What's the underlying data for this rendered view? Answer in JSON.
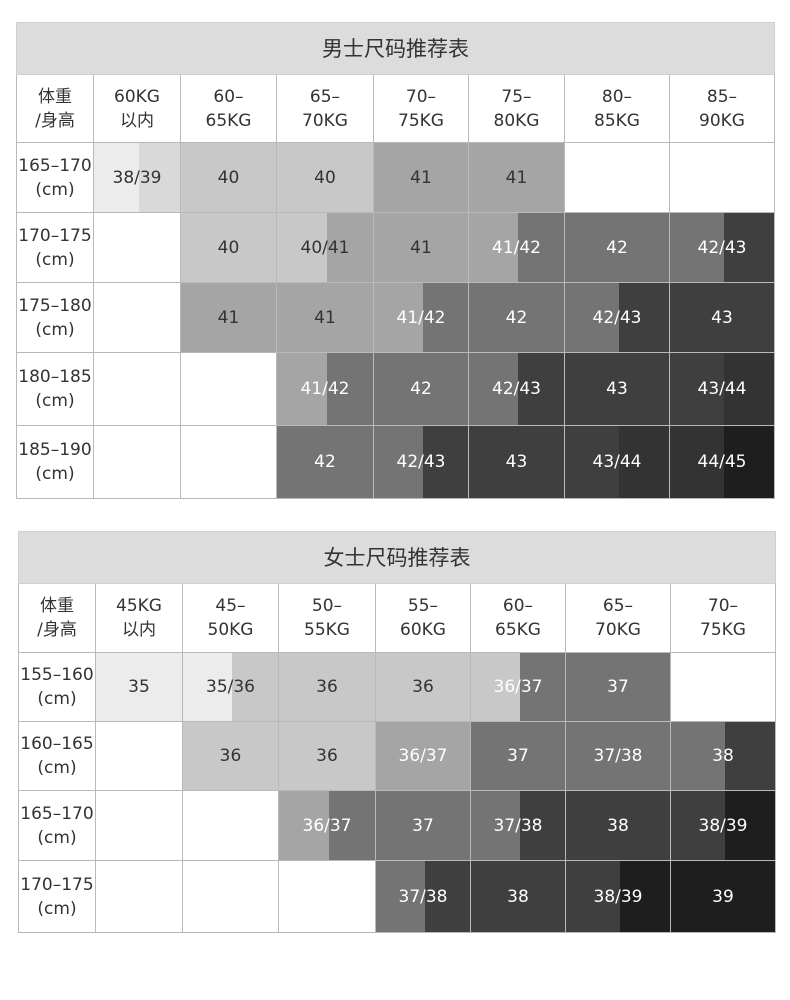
{
  "colors": {
    "c1": "#ececec",
    "c2": "#d9d9d9",
    "c3": "#c8c8c8",
    "c4": "#a5a5a5",
    "c5": "#747474",
    "c6": "#5f5f5f",
    "c7": "#3f3f3f",
    "c8": "#333333",
    "c9": "#1e1e1e",
    "empty": "#ffffff"
  },
  "men": {
    "title": "男士尺码推荐表",
    "corner": "体重\n/身高",
    "columns": [
      "60KG\n以内",
      "60–\n65KG",
      "65–\n70KG",
      "70–\n75KG",
      "75–\n80KG",
      "80–\n85KG",
      "85–\n90KG"
    ],
    "rows": [
      {
        "label": "165–170\n(cm)",
        "cells": [
          {
            "text": "38/39",
            "fill": [
              "c1",
              "c2"
            ]
          },
          {
            "text": "40",
            "fill": [
              "c3"
            ]
          },
          {
            "text": "40",
            "fill": [
              "c3"
            ]
          },
          {
            "text": "41",
            "fill": [
              "c4"
            ]
          },
          {
            "text": "41",
            "fill": [
              "c4"
            ]
          },
          {
            "text": "",
            "fill": [
              "empty"
            ]
          },
          {
            "text": "",
            "fill": [
              "empty"
            ]
          }
        ]
      },
      {
        "label": "170–175\n(cm)",
        "cells": [
          {
            "text": "",
            "fill": [
              "empty"
            ]
          },
          {
            "text": "40",
            "fill": [
              "c3"
            ]
          },
          {
            "text": "40/41",
            "fill": [
              "c3",
              "c4"
            ]
          },
          {
            "text": "41",
            "fill": [
              "c4"
            ]
          },
          {
            "text": "41/42",
            "fill": [
              "c4",
              "c5"
            ]
          },
          {
            "text": "42",
            "fill": [
              "c5"
            ]
          },
          {
            "text": "42/43",
            "fill": [
              "c5",
              "c7"
            ]
          }
        ]
      },
      {
        "label": "175–180\n(cm)",
        "cells": [
          {
            "text": "",
            "fill": [
              "empty"
            ]
          },
          {
            "text": "41",
            "fill": [
              "c4"
            ]
          },
          {
            "text": "41",
            "fill": [
              "c4"
            ]
          },
          {
            "text": "41/42",
            "fill": [
              "c4",
              "c5"
            ]
          },
          {
            "text": "42",
            "fill": [
              "c5"
            ]
          },
          {
            "text": "42/43",
            "fill": [
              "c5",
              "c7"
            ]
          },
          {
            "text": "43",
            "fill": [
              "c7"
            ]
          }
        ]
      },
      {
        "label": "180–185\n(cm)",
        "cells": [
          {
            "text": "",
            "fill": [
              "empty"
            ]
          },
          {
            "text": "",
            "fill": [
              "empty"
            ]
          },
          {
            "text": "41/42",
            "fill": [
              "c4",
              "c5"
            ]
          },
          {
            "text": "42",
            "fill": [
              "c5"
            ]
          },
          {
            "text": "42/43",
            "fill": [
              "c5",
              "c7"
            ]
          },
          {
            "text": "43",
            "fill": [
              "c7"
            ]
          },
          {
            "text": "43/44",
            "fill": [
              "c7",
              "c8"
            ]
          }
        ]
      },
      {
        "label": "185–190\n(cm)",
        "cells": [
          {
            "text": "",
            "fill": [
              "empty"
            ]
          },
          {
            "text": "",
            "fill": [
              "empty"
            ]
          },
          {
            "text": "42",
            "fill": [
              "c5"
            ]
          },
          {
            "text": "42/43",
            "fill": [
              "c5",
              "c7"
            ]
          },
          {
            "text": "43",
            "fill": [
              "c7"
            ]
          },
          {
            "text": "43/44",
            "fill": [
              "c7",
              "c8"
            ]
          },
          {
            "text": "44/45",
            "fill": [
              "c8",
              "c9"
            ]
          }
        ]
      }
    ]
  },
  "women": {
    "title": "女士尺码推荐表",
    "corner": "体重\n/身高",
    "columns": [
      "45KG\n以内",
      "45–\n50KG",
      "50–\n55KG",
      "55–\n60KG",
      "60–\n65KG",
      "65–\n70KG",
      "70–\n75KG"
    ],
    "rows": [
      {
        "label": "155–160\n(cm)",
        "cells": [
          {
            "text": "35",
            "fill": [
              "c1"
            ]
          },
          {
            "text": "35/36",
            "fill": [
              "c1",
              "c3"
            ]
          },
          {
            "text": "36",
            "fill": [
              "c3"
            ]
          },
          {
            "text": "36",
            "fill": [
              "c3"
            ]
          },
          {
            "text": "36/37",
            "fill": [
              "c3",
              "c5"
            ]
          },
          {
            "text": "37",
            "fill": [
              "c5"
            ]
          },
          {
            "text": "",
            "fill": [
              "empty"
            ]
          }
        ]
      },
      {
        "label": "160–165\n(cm)",
        "cells": [
          {
            "text": "",
            "fill": [
              "empty"
            ]
          },
          {
            "text": "36",
            "fill": [
              "c3"
            ]
          },
          {
            "text": "36",
            "fill": [
              "c3"
            ]
          },
          {
            "text": "36/37",
            "fill": [
              "c4",
              "c4"
            ]
          },
          {
            "text": "37",
            "fill": [
              "c5"
            ]
          },
          {
            "text": "37/38",
            "fill": [
              "c5",
              "c5"
            ]
          },
          {
            "text": "38",
            "fill": [
              "c5",
              "c7"
            ]
          }
        ]
      },
      {
        "label": "165–170\n(cm)",
        "cells": [
          {
            "text": "",
            "fill": [
              "empty"
            ]
          },
          {
            "text": "",
            "fill": [
              "empty"
            ]
          },
          {
            "text": "36/37",
            "fill": [
              "c4",
              "c5"
            ]
          },
          {
            "text": "37",
            "fill": [
              "c5"
            ]
          },
          {
            "text": "37/38",
            "fill": [
              "c5",
              "c7"
            ]
          },
          {
            "text": "38",
            "fill": [
              "c7"
            ]
          },
          {
            "text": "38/39",
            "fill": [
              "c7",
              "c9"
            ]
          }
        ]
      },
      {
        "label": "170–175\n(cm)",
        "cells": [
          {
            "text": "",
            "fill": [
              "empty"
            ]
          },
          {
            "text": "",
            "fill": [
              "empty"
            ]
          },
          {
            "text": "",
            "fill": [
              "empty"
            ]
          },
          {
            "text": "37/38",
            "fill": [
              "c5",
              "c7"
            ]
          },
          {
            "text": "38",
            "fill": [
              "c7"
            ]
          },
          {
            "text": "38/39",
            "fill": [
              "c7",
              "c9"
            ]
          },
          {
            "text": "39",
            "fill": [
              "c9"
            ]
          }
        ]
      }
    ]
  }
}
